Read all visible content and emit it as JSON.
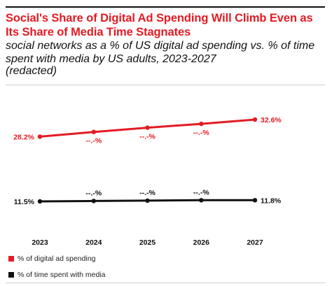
{
  "header": {
    "title": "Social's Share of Digital Ad Spending Will Climb Even as Its Share of Media Time Stagnates",
    "subtitle": "social networks as a % of US digital ad spending vs. % of time spent with media by US adults, 2023-2027",
    "subtitle_note": "(redacted)"
  },
  "chart_data": {
    "type": "line",
    "categories": [
      "2023",
      "2024",
      "2025",
      "2026",
      "2027"
    ],
    "series": [
      {
        "name": "% of digital ad spending",
        "color": "#e31b23",
        "values": [
          28.2,
          29.4,
          30.5,
          31.5,
          32.6
        ],
        "labels": [
          "28.2%",
          "--.-%",
          "--.-%",
          "--.-%",
          "32.6%"
        ]
      },
      {
        "name": "% of time spent with media",
        "color": "#111111",
        "values": [
          11.5,
          11.6,
          11.7,
          11.8,
          11.8
        ],
        "labels": [
          "11.5%",
          "--.-%",
          "--.-%",
          "--.-%",
          "11.8%"
        ]
      }
    ],
    "grid": false,
    "legend_position": "bottom-left"
  }
}
